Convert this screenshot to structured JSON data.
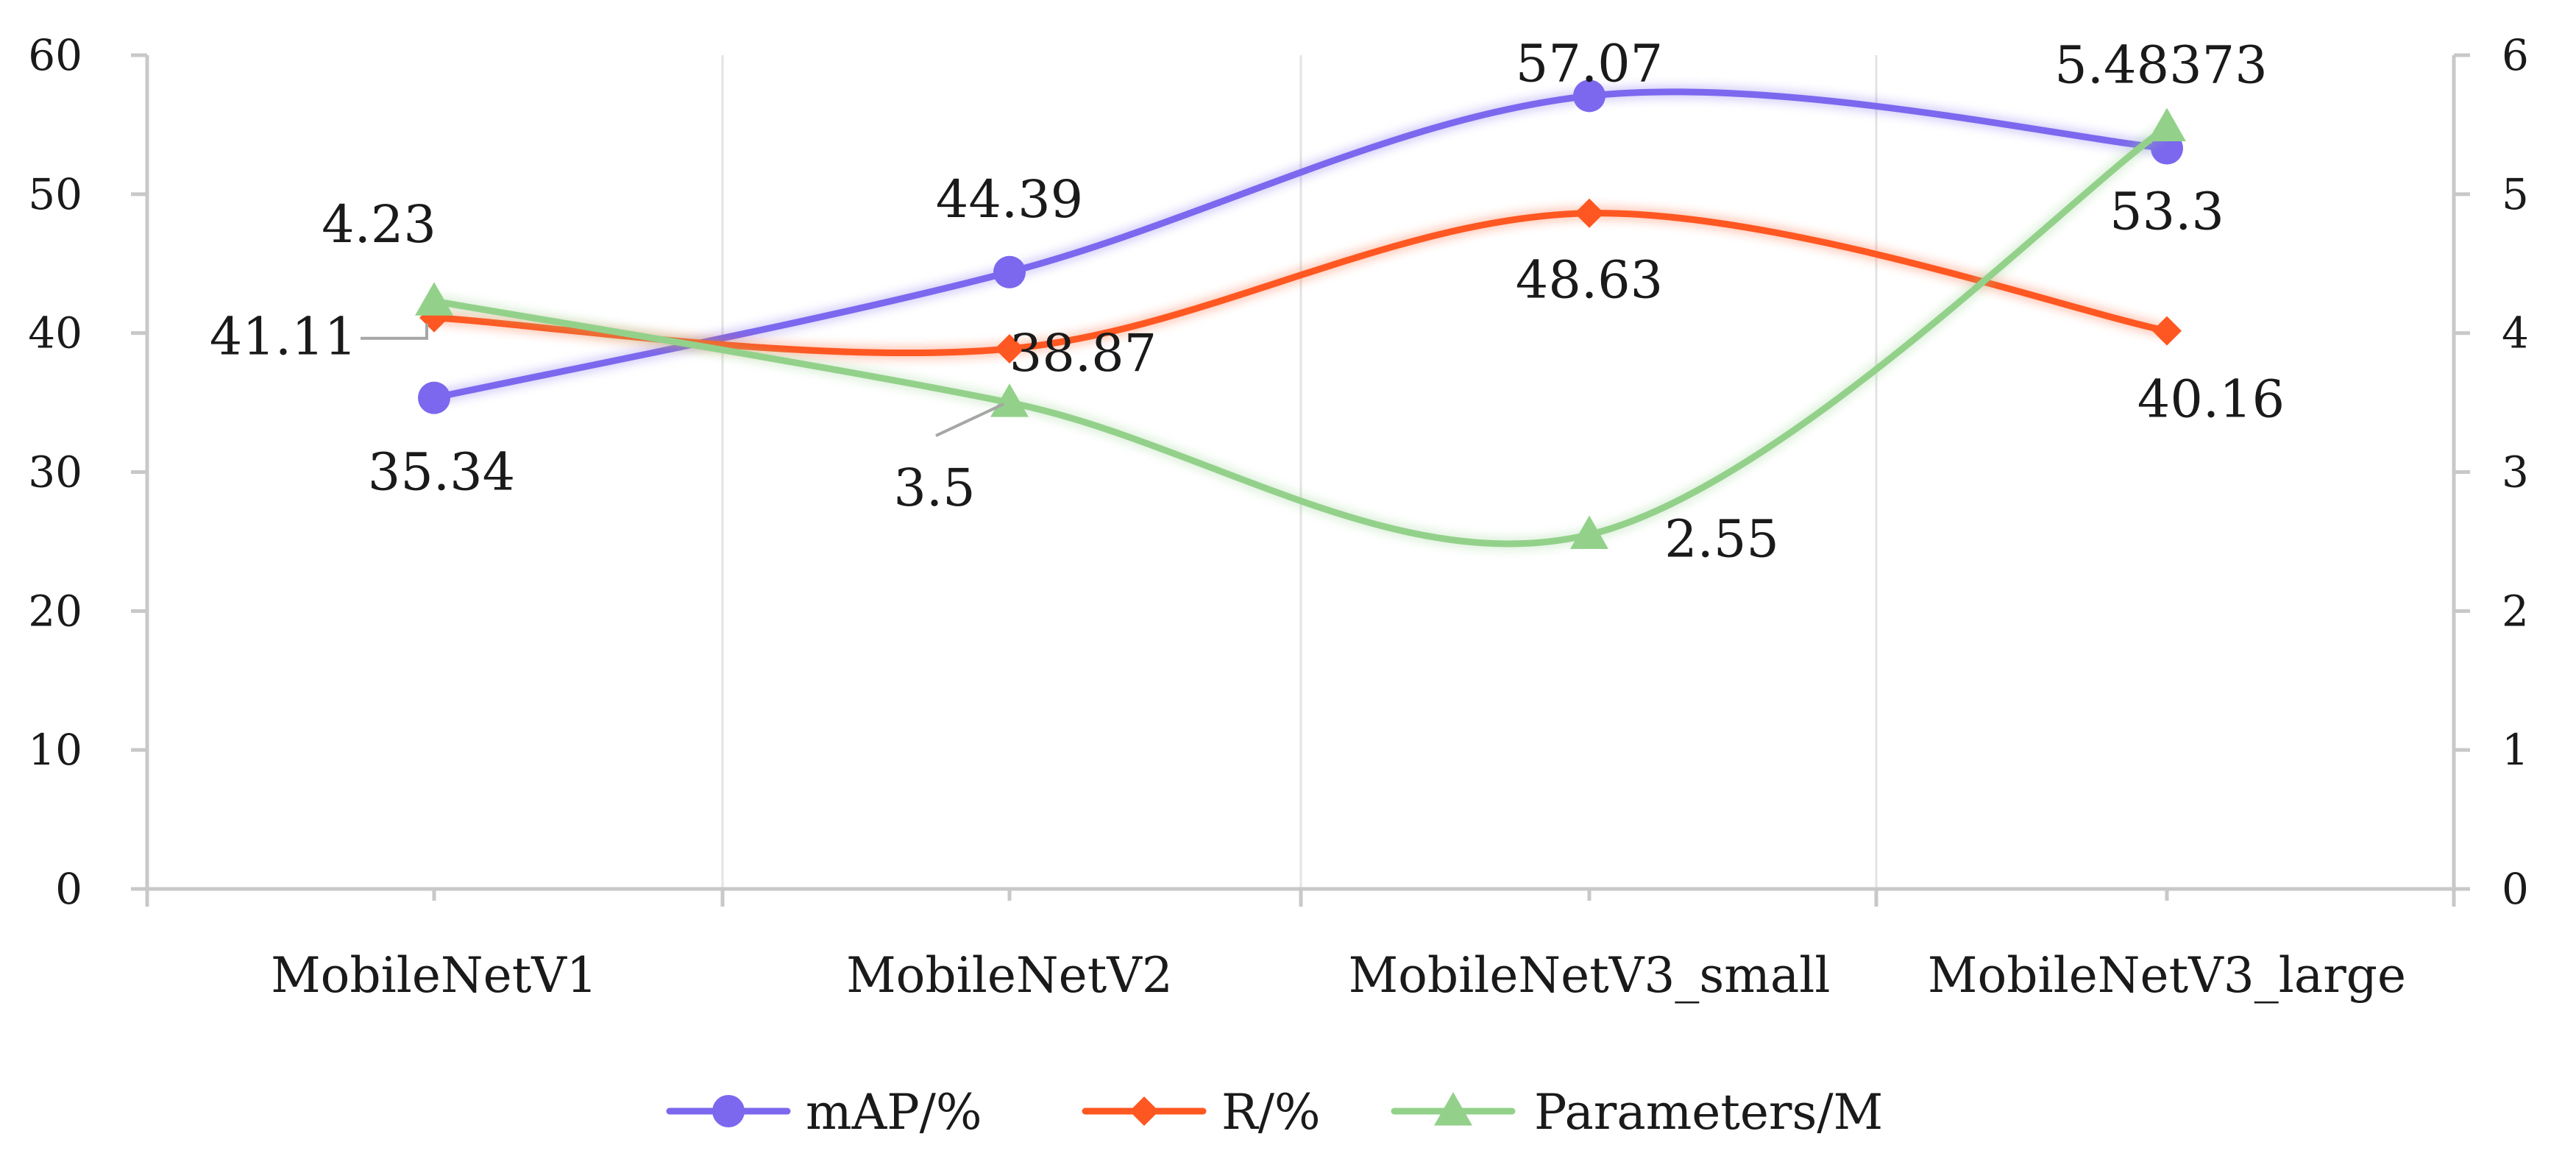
{
  "chart_data": {
    "type": "line",
    "smooth": true,
    "categories": [
      "MobileNetV1",
      "MobileNetV2",
      "MobileNetV3_small",
      "MobileNetV3_large"
    ],
    "y_axis_left": {
      "min": 0,
      "max": 60,
      "step": 10,
      "ticks": [
        "0",
        "10",
        "20",
        "30",
        "40",
        "50",
        "60"
      ]
    },
    "y_axis_right": {
      "min": 0,
      "max": 6,
      "step": 1,
      "ticks": [
        "0",
        "1",
        "2",
        "3",
        "4",
        "5",
        "6"
      ]
    },
    "grid": "vertical",
    "legend_position": "bottom",
    "series": [
      {
        "name": "mAP/%",
        "axis": "left",
        "color": "#7b68ee",
        "marker": "circle",
        "values": [
          35.34,
          44.39,
          57.07,
          53.3
        ],
        "labels": [
          "35.34",
          "44.39",
          "57.07",
          "53.3"
        ]
      },
      {
        "name": "R/%",
        "axis": "left",
        "color": "#ff5722",
        "marker": "diamond",
        "values": [
          41.11,
          38.87,
          48.63,
          40.16
        ],
        "labels": [
          "41.11",
          "38.87",
          "48.63",
          "40.16"
        ]
      },
      {
        "name": "Parameters/M",
        "axis": "right",
        "color": "#93d18b",
        "marker": "triangle",
        "values": [
          4.23,
          3.5,
          2.55,
          5.48373
        ],
        "labels": [
          "4.23",
          "3.5",
          "2.55",
          "5.48373"
        ]
      }
    ]
  }
}
